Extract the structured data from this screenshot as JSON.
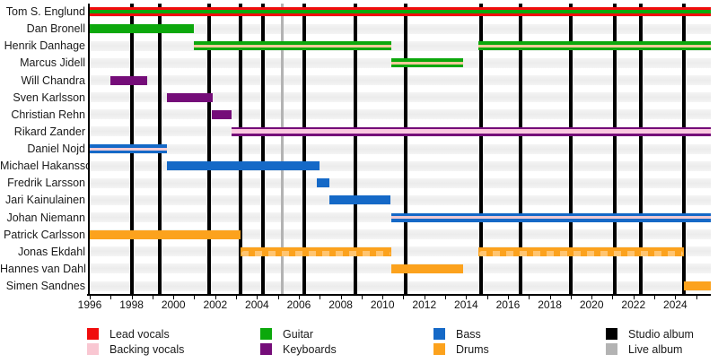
{
  "chart_data": {
    "type": "timeline",
    "description": "Band members timeline gantt chart: membership periods by instrument role, with album release markers",
    "x_axis": {
      "start": 1996,
      "end": 2025.7,
      "label_years": [
        1996,
        1998,
        2000,
        2002,
        2004,
        2006,
        2008,
        2010,
        2012,
        2014,
        2016,
        2018,
        2020,
        2022,
        2024
      ],
      "minor_tick_every_years": 1
    },
    "roles": {
      "lead_vocals": {
        "label": "Lead vocals",
        "color": "#F00C0C"
      },
      "backing_vocals": {
        "label": "Backing vocals",
        "color": "#F9C7D2"
      },
      "guitar": {
        "label": "Guitar",
        "color": "#0CA80C"
      },
      "keyboards": {
        "label": "Keyboards",
        "color": "#750D79"
      },
      "bass": {
        "label": "Bass",
        "color": "#1569C7"
      },
      "drums": {
        "label": "Drums",
        "color": "#FCA21D"
      },
      "studio_album": {
        "label": "Studio album",
        "color": "#000000"
      },
      "live_album": {
        "label": "Live album",
        "color": "#B3B3B3"
      }
    },
    "members": [
      {
        "name": "Tom S. Englund",
        "bars": [
          {
            "from": 1996.0,
            "to": 2025.7,
            "role": "lead_vocals",
            "stripe": "guitar",
            "stripe_hex": "#0CA80C"
          }
        ]
      },
      {
        "name": "Dan Bronell",
        "bars": [
          {
            "from": 1996.0,
            "to": 2001.0,
            "role": "guitar"
          }
        ]
      },
      {
        "name": "Henrik Danhage",
        "bars": [
          {
            "from": 2001.0,
            "to": 2010.4,
            "role": "guitar",
            "stripe": "backing_vocals",
            "stripe_hex": "#F3CA9A"
          },
          {
            "from": 2014.6,
            "to": 2025.7,
            "role": "guitar",
            "stripe": "backing_vocals",
            "stripe_hex": "#F3CA9A"
          }
        ]
      },
      {
        "name": "Marcus Jidell",
        "bars": [
          {
            "from": 2010.4,
            "to": 2013.85,
            "role": "guitar",
            "stripe": "backing_vocals",
            "stripe_hex": "#F3CA9A"
          }
        ]
      },
      {
        "name": "Will Chandra",
        "bars": [
          {
            "from": 1997.0,
            "to": 1998.75,
            "role": "keyboards"
          }
        ]
      },
      {
        "name": "Sven Karlsson",
        "bars": [
          {
            "from": 1999.7,
            "to": 2001.9,
            "role": "keyboards"
          }
        ]
      },
      {
        "name": "Christian Rehn",
        "bars": [
          {
            "from": 2001.85,
            "to": 2002.8,
            "role": "keyboards"
          }
        ]
      },
      {
        "name": "Rikard Zander",
        "bars": [
          {
            "from": 2002.8,
            "to": 2025.7,
            "role": "keyboards",
            "stripe": "backing_vocals",
            "stripe_hex": "#FBC9E1"
          }
        ]
      },
      {
        "name": "Daniel Nojd",
        "bars": [
          {
            "from": 1996.0,
            "to": 1999.7,
            "role": "bass",
            "stripe": "backing_vocals",
            "stripe_hex": "#F2CBD5"
          }
        ]
      },
      {
        "name": "Michael Hakansson",
        "bars": [
          {
            "from": 1999.7,
            "to": 2007.0,
            "role": "bass"
          }
        ]
      },
      {
        "name": "Fredrik Larsson",
        "bars": [
          {
            "from": 2006.85,
            "to": 2007.45,
            "role": "bass"
          }
        ]
      },
      {
        "name": "Jari Kainulainen",
        "bars": [
          {
            "from": 2007.45,
            "to": 2010.4,
            "role": "bass"
          }
        ]
      },
      {
        "name": "Johan Niemann",
        "bars": [
          {
            "from": 2010.4,
            "to": 2025.7,
            "role": "bass",
            "stripe": "backing_vocals",
            "stripe_hex": "#EFC9D2"
          }
        ]
      },
      {
        "name": "Patrick Carlsson",
        "bars": [
          {
            "from": 1996.0,
            "to": 2003.2,
            "role": "drums"
          }
        ]
      },
      {
        "name": "Jonas Ekdahl",
        "bars": [
          {
            "from": 2003.2,
            "to": 2010.4,
            "role": "drums",
            "pattern": "dashed"
          },
          {
            "from": 2014.6,
            "to": 2024.4,
            "role": "drums",
            "pattern": "dashed"
          }
        ]
      },
      {
        "name": "Hannes van Dahl",
        "bars": [
          {
            "from": 2010.4,
            "to": 2013.85,
            "role": "drums"
          }
        ]
      },
      {
        "name": "Simen Sandnes",
        "bars": [
          {
            "from": 2024.4,
            "to": 2025.7,
            "role": "drums"
          }
        ]
      }
    ],
    "albums": {
      "studio_years": [
        1998.0,
        1999.35,
        2001.7,
        2003.2,
        2004.3,
        2006.25,
        2008.7,
        2011.1,
        2014.7,
        2016.6,
        2019.0,
        2021.1,
        2022.35,
        2024.4
      ],
      "live_years": [
        2005.2
      ]
    },
    "legend": [
      {
        "label": "Lead vocals",
        "role": "lead_vocals"
      },
      {
        "label": "Backing vocals",
        "role": "backing_vocals"
      },
      {
        "label": "Guitar",
        "role": "guitar"
      },
      {
        "label": "Keyboards",
        "role": "keyboards"
      },
      {
        "label": "Bass",
        "role": "bass"
      },
      {
        "label": "Drums",
        "role": "drums"
      },
      {
        "label": "Studio album",
        "role": "studio_album"
      },
      {
        "label": "Live album",
        "role": "live_album"
      }
    ]
  }
}
